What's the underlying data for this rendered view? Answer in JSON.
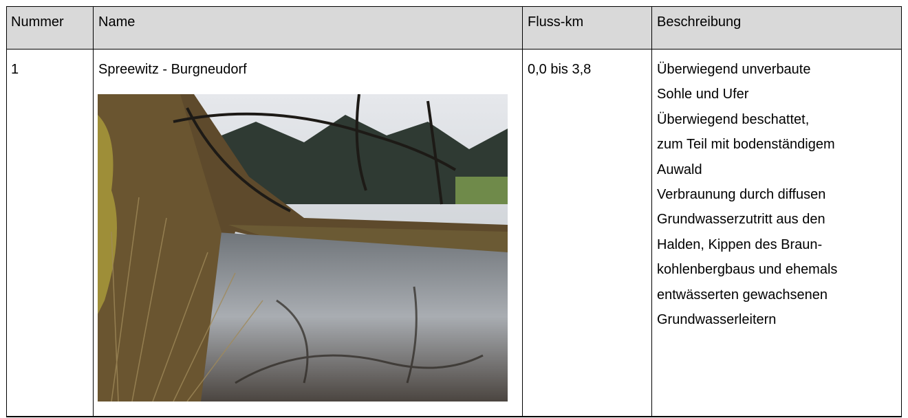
{
  "table": {
    "header": [
      "Nummer",
      "Name",
      "Fluss-km",
      "Beschreibung"
    ],
    "rows": [
      {
        "number": "1",
        "name": "Spreewitz - Burgneudorf",
        "river_km": "0,0 bis 3,8",
        "description": [
          "Überwiegend unverbaute",
          "Sohle und Ufer",
          "Überwiegend beschattet,",
          "zum Teil mit bodenständigem",
          "Auwald",
          "Verbraunung durch diffusen",
          "Grundwasserzutritt aus den",
          "Halden, Kippen des Braun-",
          "kohlenbergbaus und ehemals",
          "entwässerten gewachsenen",
          "Grundwasserleitern"
        ]
      }
    ]
  }
}
